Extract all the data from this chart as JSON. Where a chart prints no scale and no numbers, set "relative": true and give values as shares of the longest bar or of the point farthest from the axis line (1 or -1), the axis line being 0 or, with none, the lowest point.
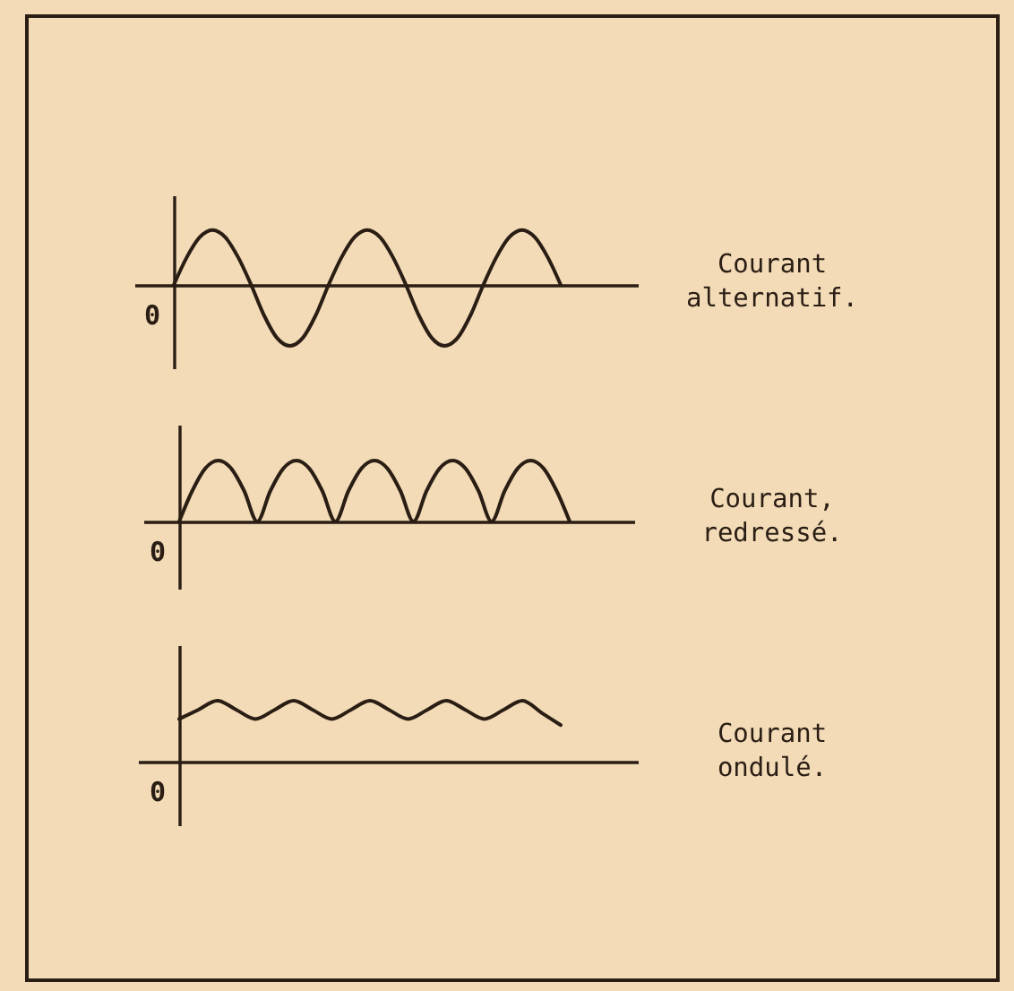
{
  "chart_data": [
    {
      "type": "line",
      "relative": true,
      "categories": [
        null,
        null,
        null,
        null,
        null,
        null,
        null,
        null,
        null,
        null,
        null,
        null,
        null,
        null,
        null,
        null,
        null,
        null,
        null,
        null,
        null,
        null,
        null,
        null,
        null,
        null,
        null,
        null,
        null,
        null,
        null
      ],
      "series": [
        {
          "name": "Courant alternatif.",
          "color": "#2a1d14",
          "values": [
            0,
            0.45,
            0.78,
            0.9,
            0.78,
            0.45,
            0,
            -0.5,
            -0.87,
            -1,
            -0.87,
            -0.5,
            0,
            0.45,
            0.78,
            0.9,
            0.78,
            0.45,
            0,
            -0.5,
            -0.87,
            -1,
            -0.87,
            -0.5,
            0,
            0.45,
            0.78,
            0.9,
            0.78,
            0.45,
            0
          ]
        }
      ],
      "annotations": [
        "0"
      ]
    },
    {
      "type": "line",
      "relative": true,
      "categories": [
        null,
        null,
        null,
        null,
        null,
        null,
        null,
        null,
        null,
        null,
        null,
        null,
        null,
        null,
        null,
        null,
        null,
        null,
        null,
        null,
        null,
        null,
        null,
        null,
        null,
        null,
        null,
        null,
        null,
        null,
        null
      ],
      "series": [
        {
          "name": "Courant, redressé.",
          "color": "#2a1d14",
          "values": [
            0,
            0.5,
            0.87,
            1,
            0.87,
            0.5,
            0,
            0.5,
            0.87,
            1,
            0.87,
            0.5,
            0,
            0.5,
            0.87,
            1,
            0.87,
            0.5,
            0,
            0.5,
            0.87,
            1,
            0.87,
            0.5,
            0,
            0.5,
            0.87,
            1,
            0.87,
            0.5,
            0
          ]
        }
      ],
      "annotations": [
        "0"
      ]
    },
    {
      "type": "line",
      "relative": true,
      "categories": [
        null,
        null,
        null,
        null,
        null,
        null,
        null,
        null,
        null,
        null,
        null,
        null,
        null,
        null,
        null,
        null,
        null,
        null,
        null,
        null,
        null
      ],
      "series": [
        {
          "name": "Courant ondulé.",
          "color": "#2a1d14",
          "values": [
            0.7,
            0.85,
            1,
            0.85,
            0.7,
            0.85,
            1,
            0.85,
            0.7,
            0.85,
            1,
            0.85,
            0.7,
            0.85,
            1,
            0.85,
            0.7,
            0.85,
            1,
            0.8,
            0.6
          ]
        }
      ],
      "annotations": [
        "0"
      ]
    }
  ]
}
